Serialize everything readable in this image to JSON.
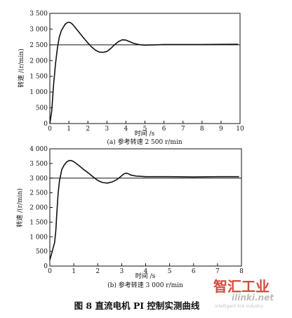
{
  "chart_data": [
    {
      "type": "line",
      "caption": "(a)  参考转速  2 500 r/min",
      "xlabel": "时间  /s",
      "ylabel": "转速 /(r/min)",
      "xlim": [
        0,
        10
      ],
      "ylim": [
        0,
        3500
      ],
      "xticks": [
        0,
        1,
        2,
        3,
        4,
        5,
        6,
        7,
        8,
        9,
        10
      ],
      "xtick_labels": [
        "0",
        "1",
        "2",
        "3",
        "4",
        "5",
        "6",
        "7",
        "8",
        "9",
        "10"
      ],
      "yticks": [
        0,
        500,
        1000,
        1500,
        2000,
        2500,
        3000,
        3500
      ],
      "ytick_labels": [
        "0",
        "500",
        "1 000",
        "1 500",
        "2 000",
        "2 500",
        "3 000",
        "3 500"
      ],
      "grid": false,
      "series": [
        {
          "role": "reference",
          "x": [
            0,
            10
          ],
          "y": [
            2500,
            2500
          ]
        },
        {
          "role": "response",
          "x": [
            0,
            0.1,
            0.2,
            0.3,
            0.4,
            0.5,
            0.6,
            0.7,
            0.8,
            0.9,
            1.0,
            1.1,
            1.2,
            1.4,
            1.6,
            1.8,
            2.0,
            2.2,
            2.4,
            2.6,
            2.8,
            3.0,
            3.2,
            3.4,
            3.6,
            3.8,
            4.0,
            4.2,
            4.4,
            4.6,
            4.8,
            5.0,
            5.5,
            6.0,
            7.0,
            8.0,
            9.0,
            9.9
          ],
          "y": [
            0,
            400,
            1250,
            1900,
            2400,
            2750,
            2950,
            3050,
            3150,
            3200,
            3220,
            3200,
            3150,
            3000,
            2850,
            2700,
            2560,
            2430,
            2330,
            2270,
            2260,
            2290,
            2380,
            2500,
            2600,
            2660,
            2650,
            2600,
            2550,
            2520,
            2500,
            2490,
            2500,
            2510,
            2510,
            2510,
            2515,
            2520
          ]
        }
      ]
    },
    {
      "type": "line",
      "caption": "(b)  参考转速  3 000 r/min",
      "xlabel": "时间  /s",
      "ylabel": "转速 /(r/min)",
      "xlim": [
        0,
        8
      ],
      "ylim": [
        0,
        4000
      ],
      "xticks": [
        0,
        1,
        2,
        3,
        4,
        5,
        6,
        7,
        8
      ],
      "xtick_labels": [
        "0",
        "1",
        "2",
        "3",
        "4",
        "5",
        "6",
        "7",
        "8"
      ],
      "yticks": [
        0,
        500,
        1000,
        1500,
        2000,
        2500,
        3000,
        3500,
        4000
      ],
      "ytick_labels": [
        "0",
        "500",
        "1 000",
        "1 500",
        "2 000",
        "2 500",
        "3 000",
        "3 500",
        "4 000"
      ],
      "grid": false,
      "series": [
        {
          "role": "reference",
          "x": [
            0,
            8
          ],
          "y": [
            3000,
            3000
          ]
        },
        {
          "role": "response",
          "x": [
            0,
            0.1,
            0.2,
            0.25,
            0.3,
            0.35,
            0.4,
            0.5,
            0.6,
            0.7,
            0.8,
            0.9,
            1.0,
            1.2,
            1.4,
            1.6,
            1.8,
            2.0,
            2.2,
            2.4,
            2.6,
            2.8,
            3.0,
            3.1,
            3.2,
            3.3,
            3.4,
            3.6,
            3.8,
            4.0,
            5.0,
            6.0,
            7.0,
            7.9
          ],
          "y": [
            200,
            500,
            800,
            1200,
            1900,
            2500,
            2900,
            3300,
            3450,
            3550,
            3600,
            3600,
            3560,
            3440,
            3300,
            3180,
            3050,
            2920,
            2850,
            2830,
            2870,
            2950,
            3080,
            3150,
            3170,
            3140,
            3100,
            3070,
            3060,
            3050,
            3050,
            3040,
            3050,
            3050
          ]
        }
      ]
    }
  ],
  "figure_caption": "图 8    直流电机 PI 控制实测曲线",
  "watermark": {
    "cn": "智汇工业",
    "en": "ilinki.net",
    "tagline": "intelligent link industry",
    "color": "#d24a3c"
  }
}
